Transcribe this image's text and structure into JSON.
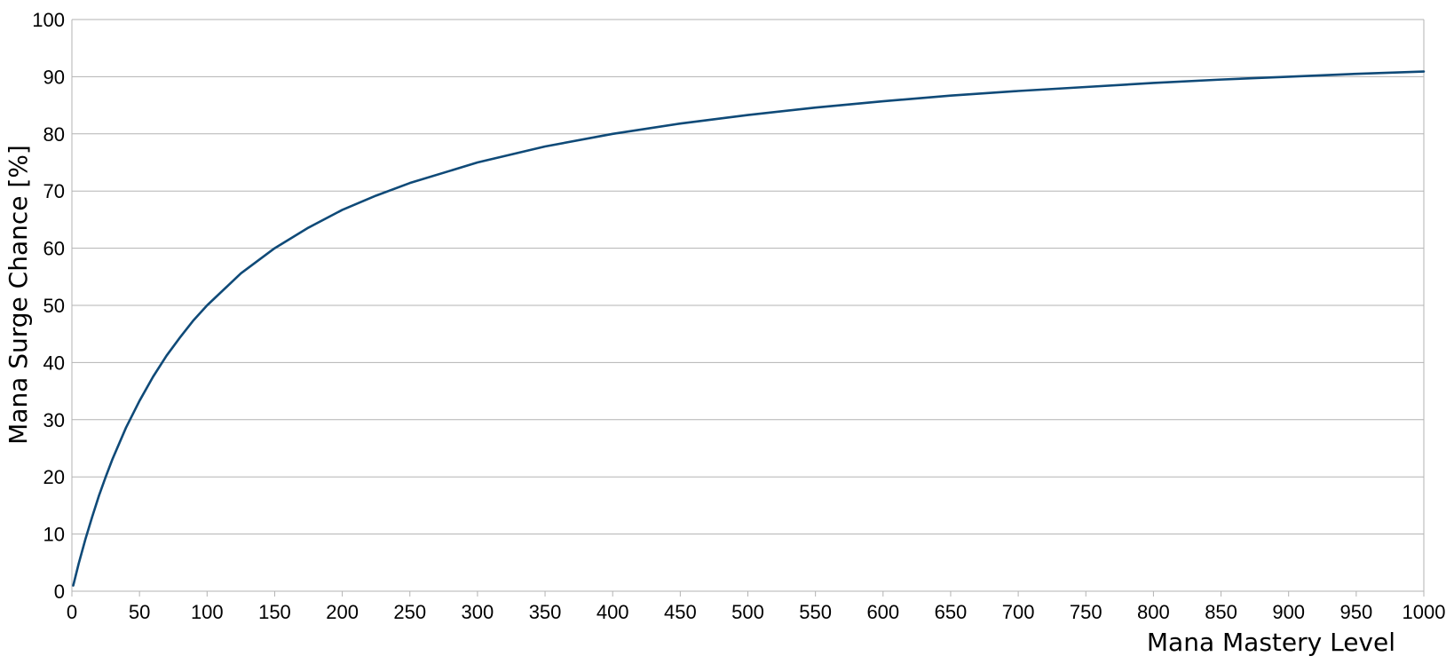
{
  "chart_data": {
    "type": "line",
    "title": "",
    "xlabel": "Mana Mastery Level",
    "ylabel": "Mana Surge Chance [%]",
    "xlim": [
      0,
      1000
    ],
    "ylim": [
      0,
      100
    ],
    "x_ticks": [
      "0",
      "50",
      "100",
      "150",
      "200",
      "250",
      "300",
      "350",
      "400",
      "450",
      "500",
      "550",
      "600",
      "650",
      "700",
      "750",
      "800",
      "850",
      "900",
      "950",
      "1000"
    ],
    "y_ticks": [
      "0",
      "10",
      "20",
      "30",
      "40",
      "50",
      "60",
      "70",
      "80",
      "90",
      "100"
    ],
    "grid": "horizontal",
    "legend": "none",
    "series": [
      {
        "color": "#0f4a78",
        "x": [
          1,
          5,
          10,
          15,
          20,
          25,
          30,
          40,
          50,
          60,
          70,
          80,
          90,
          100,
          125,
          150,
          175,
          200,
          225,
          250,
          300,
          350,
          400,
          450,
          500,
          550,
          600,
          650,
          700,
          750,
          800,
          850,
          900,
          950,
          1000
        ],
        "y": [
          1.0,
          4.8,
          9.1,
          13.0,
          16.7,
          20.0,
          23.1,
          28.6,
          33.3,
          37.5,
          41.2,
          44.4,
          47.4,
          50.0,
          55.6,
          60.0,
          63.6,
          66.7,
          69.2,
          71.4,
          75.0,
          77.8,
          80.0,
          81.8,
          83.3,
          84.6,
          85.7,
          86.7,
          87.5,
          88.2,
          88.9,
          89.5,
          90.0,
          90.5,
          90.9
        ]
      }
    ]
  }
}
